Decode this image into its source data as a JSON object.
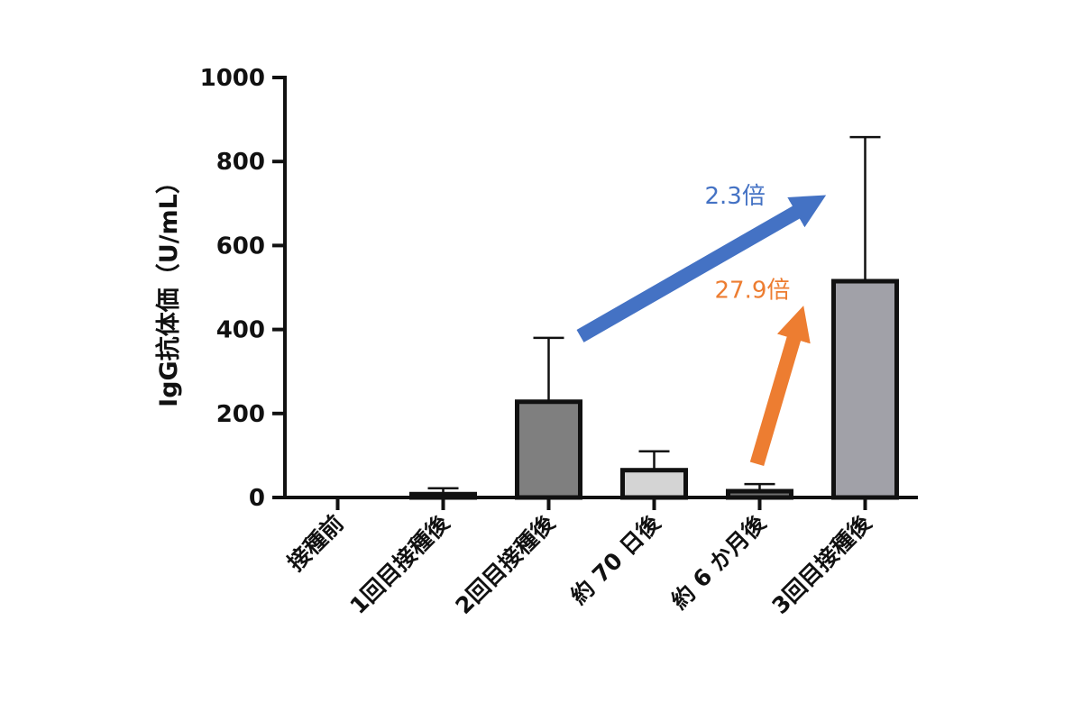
{
  "chart_data": {
    "type": "bar",
    "ylabel": "IgG抗体価（U/mL）",
    "xlabel": "",
    "ylim": [
      0,
      1000
    ],
    "yticks": [
      0,
      200,
      400,
      600,
      800,
      1000
    ],
    "grid": false,
    "categories": [
      "接種前",
      "1回目接種後",
      "2回目接種後",
      "約 70 日後",
      "約 6 か月後",
      "3回目接種後"
    ],
    "values": [
      0,
      8,
      228,
      65,
      15,
      515
    ],
    "error_upper": [
      0,
      22,
      380,
      110,
      32,
      858
    ],
    "bar_colors": [
      "#ffffff",
      "#8f8f8f",
      "#7f7f7f",
      "#d4d4d4",
      "#6f6f6f",
      "#a1a1a8"
    ],
    "annotations": [
      {
        "text": "2.3倍",
        "color": "#4472c4",
        "from_category": "2回目接種後",
        "to_category": "3回目接種後",
        "from_value": 380,
        "to_value": 670
      },
      {
        "text": "27.9倍",
        "color": "#ed7d31",
        "from_category": "約 6 か月後",
        "to_category": "約 6 か月後",
        "from_value": 80,
        "to_value": 415
      }
    ]
  }
}
